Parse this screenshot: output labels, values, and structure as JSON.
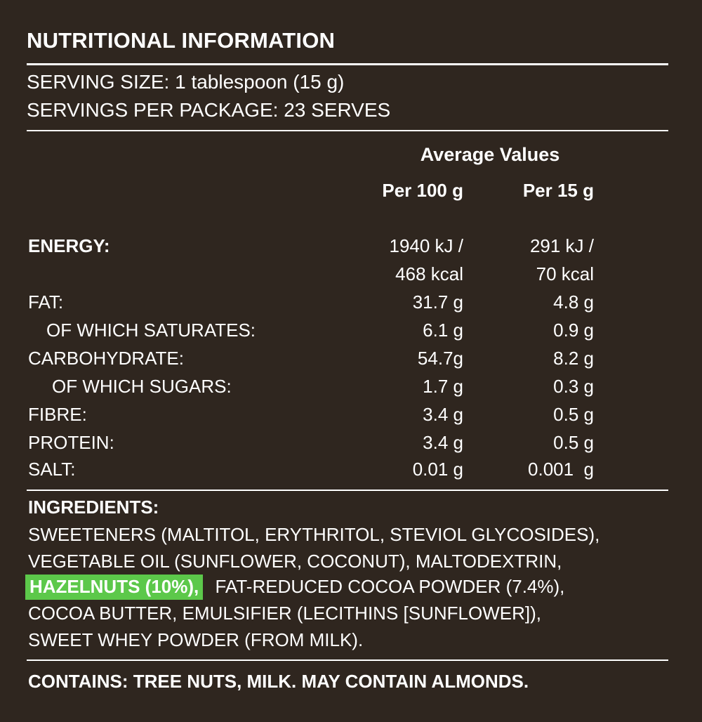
{
  "title": "NUTRITIONAL INFORMATION",
  "serving_size": "SERVING SIZE: 1 tablespoon (15 g)",
  "servings_per_package": "SERVINGS PER PACKAGE: 23 SERVES",
  "average_values_heading": "Average Values",
  "columns": {
    "per_100g": "Per 100 g",
    "per_15g": "Per 15 g"
  },
  "energy": {
    "label": "ENERGY:",
    "per_100g_kj": "1940 kJ /",
    "per_100g_kcal": "468 kcal",
    "per_15g_kj": "291 kJ /",
    "per_15g_kcal": "70 kcal"
  },
  "nutrients": [
    {
      "label": "FAT:",
      "per_100g": "31.7 g",
      "per_15g": "4.8 g"
    },
    {
      "label": "OF WHICH SATURATES:",
      "per_100g": "6.1 g",
      "per_15g": "0.9 g"
    },
    {
      "label": "CARBOHYDRATE:",
      "per_100g": "54.7g",
      "per_15g": "8.2 g"
    },
    {
      "label": "OF WHICH SUGARS:",
      "per_100g": "1.7 g",
      "per_15g": "0.3 g"
    },
    {
      "label": "FIBRE:",
      "per_100g": "3.4 g",
      "per_15g": "0.5 g"
    },
    {
      "label": "PROTEIN:",
      "per_100g": "3.4 g",
      "per_15g": "0.5 g"
    },
    {
      "label": "SALT:",
      "per_100g": "0.01 g",
      "per_15g": "0.001  g"
    }
  ],
  "ingredients": {
    "title": "INGREDIENTS:",
    "line1": "SWEETENERS (MALTITOL, ERYTHRITOL, STEVIOL GLYCOSIDES),",
    "line2": "VEGETABLE OIL (SUNFLOWER, COCONUT), MALTODEXTRIN,",
    "line3_highlight": "HAZELNUTS (10%),",
    "line3_rest": "FAT-REDUCED COCOA POWDER (7.4%),",
    "line4": "COCOA BUTTER, EMULSIFIER (LECITHINS [SUNFLOWER]),",
    "line5": "SWEET WHEY POWDER (FROM MILK)."
  },
  "contains": "CONTAINS: TREE NUTS, MILK. MAY CONTAIN ALMONDS.",
  "colors": {
    "background": "#2f261f",
    "text": "#ffffff",
    "highlight": "#5cc84a"
  }
}
